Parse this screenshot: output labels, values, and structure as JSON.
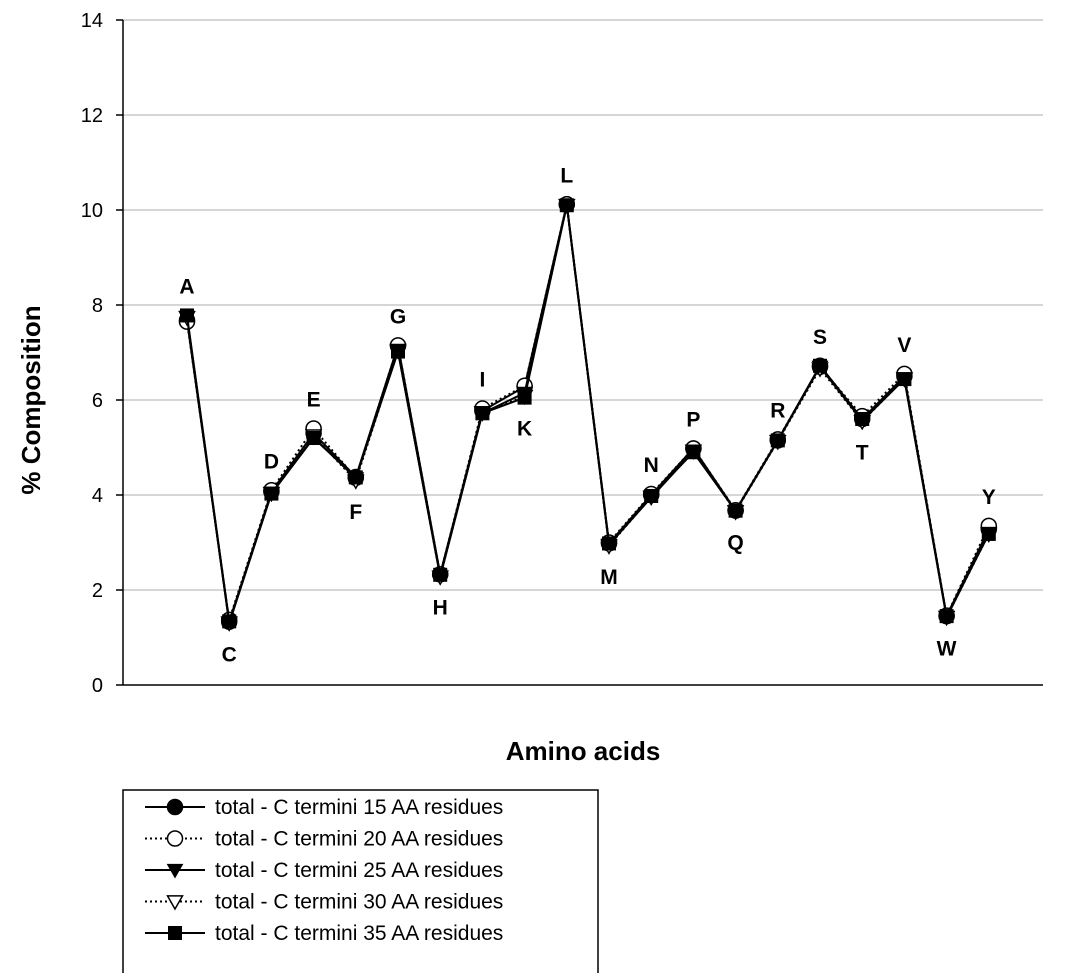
{
  "chart_data": {
    "type": "line",
    "xlabel": "Amino acids",
    "ylabel": "% Composition",
    "ylim": [
      0,
      14
    ],
    "yticks": [
      0,
      2,
      4,
      6,
      8,
      10,
      12,
      14
    ],
    "grid": "horizontal",
    "legend_position": "bottom-left",
    "categories": [
      "A",
      "C",
      "D",
      "E",
      "F",
      "G",
      "H",
      "I",
      "K",
      "L",
      "M",
      "N",
      "P",
      "Q",
      "R",
      "S",
      "T",
      "V",
      "W",
      "Y"
    ],
    "point_labels": [
      {
        "text": "A",
        "position": "above"
      },
      {
        "text": "C",
        "position": "below"
      },
      {
        "text": "D",
        "position": "above"
      },
      {
        "text": "E",
        "position": "above"
      },
      {
        "text": "F",
        "position": "below"
      },
      {
        "text": "G",
        "position": "above"
      },
      {
        "text": "H",
        "position": "below"
      },
      {
        "text": "I",
        "position": "above"
      },
      {
        "text": "K",
        "position": "below"
      },
      {
        "text": "L",
        "position": "above"
      },
      {
        "text": "M",
        "position": "below"
      },
      {
        "text": "N",
        "position": "above"
      },
      {
        "text": "P",
        "position": "above"
      },
      {
        "text": "Q",
        "position": "below"
      },
      {
        "text": "R",
        "position": "above"
      },
      {
        "text": "S",
        "position": "above"
      },
      {
        "text": "T",
        "position": "below"
      },
      {
        "text": "V",
        "position": "above"
      },
      {
        "text": "W",
        "position": "below"
      },
      {
        "text": "Y",
        "position": "above"
      }
    ],
    "series": [
      {
        "name": "total - C termini 15 AA residues",
        "marker": "filled-circle",
        "line_style": "solid",
        "values": [
          7.68,
          1.33,
          4.07,
          5.3,
          4.38,
          7.14,
          2.33,
          5.77,
          6.28,
          10.12,
          2.98,
          4.0,
          4.98,
          3.67,
          5.15,
          6.72,
          5.6,
          6.5,
          1.45,
          3.28
        ]
      },
      {
        "name": "total - C termini 20 AA residues",
        "marker": "open-circle",
        "line_style": "dotted",
        "values": [
          7.65,
          1.37,
          4.1,
          5.4,
          4.36,
          7.15,
          2.33,
          5.82,
          6.3,
          10.12,
          3.0,
          4.02,
          4.98,
          3.68,
          5.17,
          6.7,
          5.66,
          6.55,
          1.46,
          3.35
        ]
      },
      {
        "name": "total - C termini 25 AA residues",
        "marker": "filled-triangle-down",
        "line_style": "solid",
        "values": [
          7.75,
          1.3,
          4.03,
          5.22,
          4.35,
          7.03,
          2.28,
          5.72,
          6.15,
          10.1,
          2.95,
          3.95,
          4.92,
          3.66,
          5.14,
          6.7,
          5.56,
          6.44,
          1.42,
          3.2
        ]
      },
      {
        "name": "total - C termini 30 AA residues",
        "marker": "open-triangle-down",
        "line_style": "dotted",
        "values": [
          7.74,
          1.31,
          4.04,
          5.25,
          4.3,
          7.05,
          2.28,
          5.74,
          6.08,
          10.1,
          2.93,
          3.96,
          4.93,
          3.65,
          5.13,
          6.66,
          5.55,
          6.45,
          1.43,
          3.18
        ]
      },
      {
        "name": "total - C termini 35 AA residues",
        "marker": "filled-square",
        "line_style": "solid",
        "values": [
          7.78,
          1.34,
          4.03,
          5.2,
          4.37,
          7.02,
          2.32,
          5.72,
          6.05,
          10.1,
          2.98,
          3.98,
          4.9,
          3.67,
          5.15,
          6.72,
          5.6,
          6.44,
          1.45,
          3.18
        ]
      }
    ]
  }
}
